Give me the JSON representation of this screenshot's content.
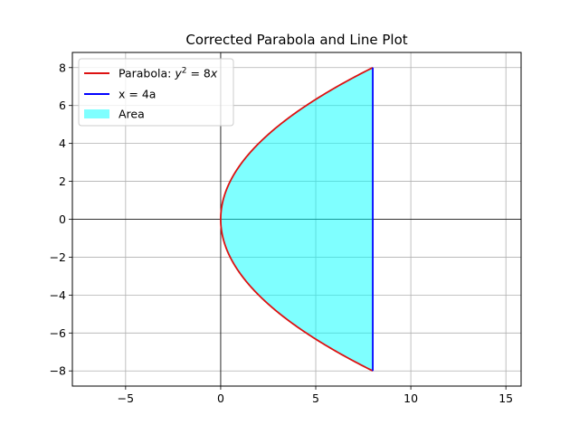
{
  "chart_data": {
    "type": "line",
    "title": "Corrected Parabola and Line Plot",
    "xlabel": "",
    "ylabel": "",
    "xlim": [
      -7.8,
      15.8
    ],
    "ylim": [
      -8.8,
      8.8
    ],
    "x_ticks": [
      -5,
      0,
      5,
      10,
      15
    ],
    "y_ticks": [
      -8,
      -6,
      -4,
      -2,
      0,
      2,
      4,
      6,
      8
    ],
    "x_tick_labels": [
      "−5",
      "0",
      "5",
      "10",
      "15"
    ],
    "y_tick_labels": [
      "−8",
      "−6",
      "−4",
      "−2",
      "0",
      "2",
      "4",
      "6",
      "8"
    ],
    "grid": true,
    "legend_position": "top-left",
    "series": [
      {
        "name": "Parabola: y² = 8x",
        "legend_prefix": "Parabola: ",
        "legend_math": "y",
        "legend_sup": "2",
        "legend_rest": " = 8",
        "legend_var": "x",
        "kind": "line",
        "color": "#dd1111",
        "equation": "y^2 = 8x",
        "y_range": [
          -8,
          8
        ]
      },
      {
        "name": "x = 4a",
        "kind": "line",
        "color": "#0000ff",
        "x": [
          8,
          8
        ],
        "y": [
          -8,
          8
        ]
      },
      {
        "name": "Area",
        "kind": "fill",
        "color": "#00ffff",
        "opacity": 0.5,
        "bounded_by": "parabola and x = 8"
      }
    ]
  }
}
